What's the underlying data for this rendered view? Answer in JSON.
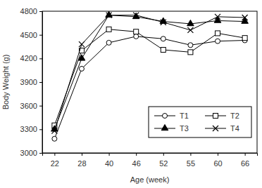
{
  "chart_data": {
    "type": "line",
    "x_label": "Age (week)",
    "y_label": "Body Weight (g)",
    "categories": [
      "22",
      "28",
      "40",
      "46",
      "52",
      "55",
      "60",
      "66"
    ],
    "series": [
      {
        "name": "T1",
        "color": "#000000",
        "marker": "circle-open",
        "values": [
          3180,
          4070,
          4400,
          4480,
          4450,
          4370,
          4420,
          4430
        ]
      },
      {
        "name": "T2",
        "color": "#000000",
        "marker": "square-open",
        "values": [
          3350,
          4300,
          4570,
          4540,
          4310,
          4280,
          4520,
          4460
        ]
      },
      {
        "name": "T3",
        "color": "#000000",
        "marker": "triangle",
        "values": [
          3300,
          4200,
          4750,
          4730,
          4670,
          4640,
          4680,
          4670
        ]
      },
      {
        "name": "T4",
        "color": "#000000",
        "marker": "x",
        "values": [
          3280,
          4380,
          4750,
          4750,
          4660,
          4560,
          4730,
          4720
        ]
      }
    ],
    "ylim": [
      3000,
      4800
    ],
    "yticks": [
      3000,
      3300,
      3600,
      3900,
      4200,
      4500,
      4800
    ],
    "grid": false,
    "legend": "lower right"
  }
}
